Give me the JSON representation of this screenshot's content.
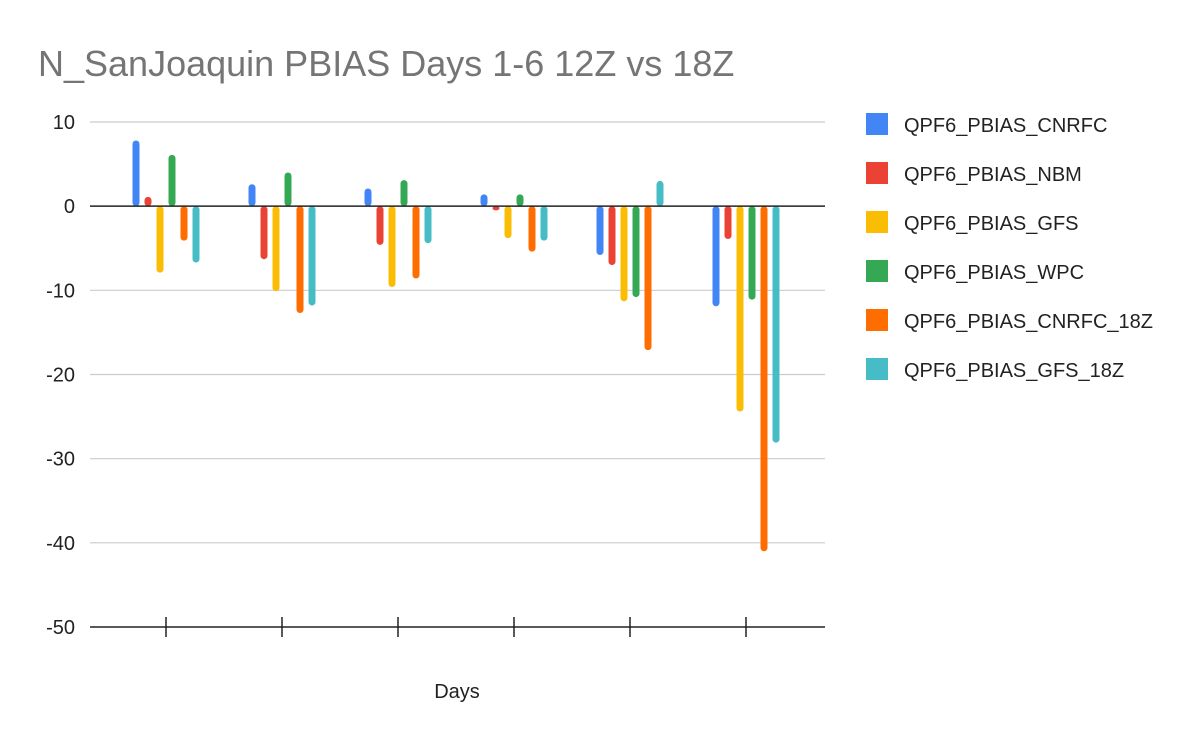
{
  "chart_data": {
    "type": "bar",
    "title": "N_SanJoaquin PBIAS Days 1-6 12Z vs 18Z",
    "xlabel": "Days",
    "ylabel": "",
    "ylim": [
      -50,
      10
    ],
    "yticks": [
      10,
      0,
      -10,
      -20,
      -30,
      -40,
      -50
    ],
    "categories": [
      "",
      "",
      "",
      "",
      "",
      ""
    ],
    "grid": true,
    "legend_position": "right",
    "series": [
      {
        "name": "QPF6_PBIAS_CNRFC",
        "color": "#4285F4",
        "values": [
          7.8,
          2.6,
          2.1,
          1.4,
          -5.8,
          -11.9
        ]
      },
      {
        "name": "QPF6_PBIAS_NBM",
        "color": "#EA4335",
        "values": [
          1.1,
          -6.3,
          -4.6,
          -0.5,
          -7.0,
          -3.9
        ]
      },
      {
        "name": "QPF6_PBIAS_GFS",
        "color": "#FBBC04",
        "values": [
          -7.9,
          -10.1,
          -9.6,
          -3.8,
          -11.3,
          -24.4
        ]
      },
      {
        "name": "QPF6_PBIAS_WPC",
        "color": "#34A853",
        "values": [
          6.1,
          4.0,
          3.1,
          1.4,
          -10.8,
          -11.1
        ]
      },
      {
        "name": "QPF6_PBIAS_CNRFC_18Z",
        "color": "#FF6D01",
        "values": [
          -4.1,
          -12.7,
          -8.6,
          -5.4,
          -17.1,
          -41.0
        ]
      },
      {
        "name": "QPF6_PBIAS_GFS_18Z",
        "color": "#46BDC6",
        "values": [
          -6.7,
          -11.8,
          -4.4,
          -4.1,
          3.0,
          -28.1
        ]
      }
    ]
  }
}
